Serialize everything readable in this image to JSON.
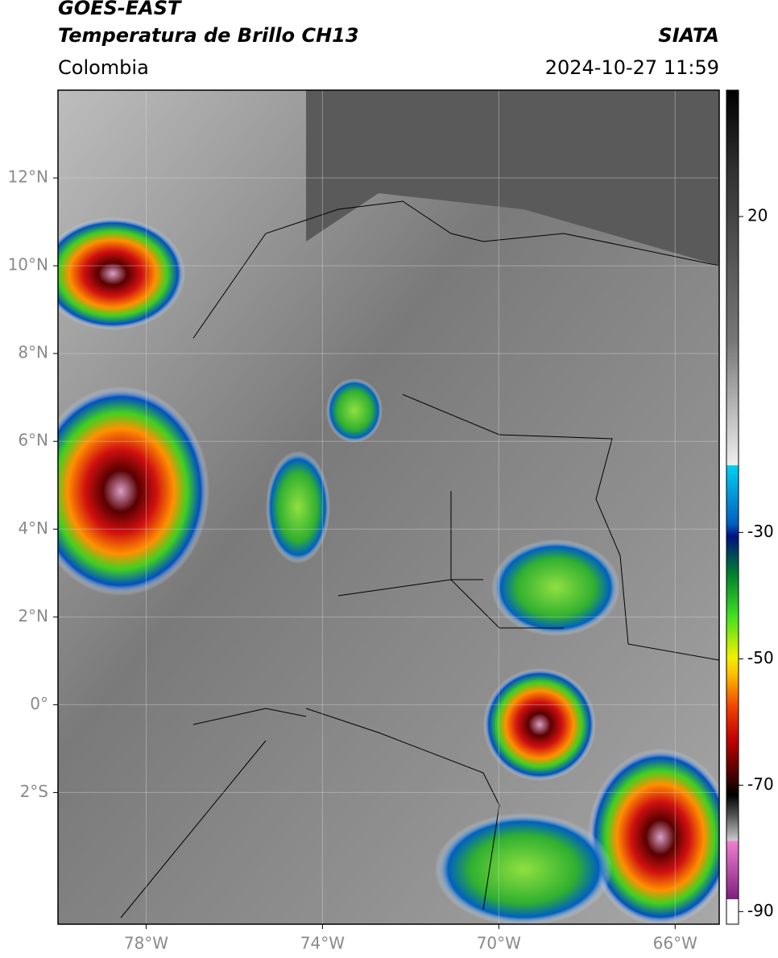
{
  "header": {
    "title": "GOES-EAST",
    "subtitle": "Temperatura de Brillo CH13",
    "source": "SIATA",
    "region": "Colombia",
    "datetime": "2024-10-27 11:59"
  },
  "map": {
    "xlim": [
      -80,
      -65
    ],
    "ylim": [
      -5,
      14
    ],
    "xticks": [
      {
        "value": -78,
        "label": "78°W"
      },
      {
        "value": -74,
        "label": "74°W"
      },
      {
        "value": -70,
        "label": "70°W"
      },
      {
        "value": -66,
        "label": "66°W"
      }
    ],
    "yticks": [
      {
        "value": 12,
        "label": "12°N"
      },
      {
        "value": 10,
        "label": "10°N"
      },
      {
        "value": 8,
        "label": "8°N"
      },
      {
        "value": 6,
        "label": "6°N"
      },
      {
        "value": 4,
        "label": "4°N"
      },
      {
        "value": 2,
        "label": "2°N"
      },
      {
        "value": 0,
        "label": "0°"
      },
      {
        "value": -2,
        "label": "2°S"
      }
    ],
    "grid": true
  },
  "colorbar": {
    "lim": [
      -92,
      40
    ],
    "ticks": [
      20,
      -30,
      -50,
      -70,
      -90
    ]
  }
}
